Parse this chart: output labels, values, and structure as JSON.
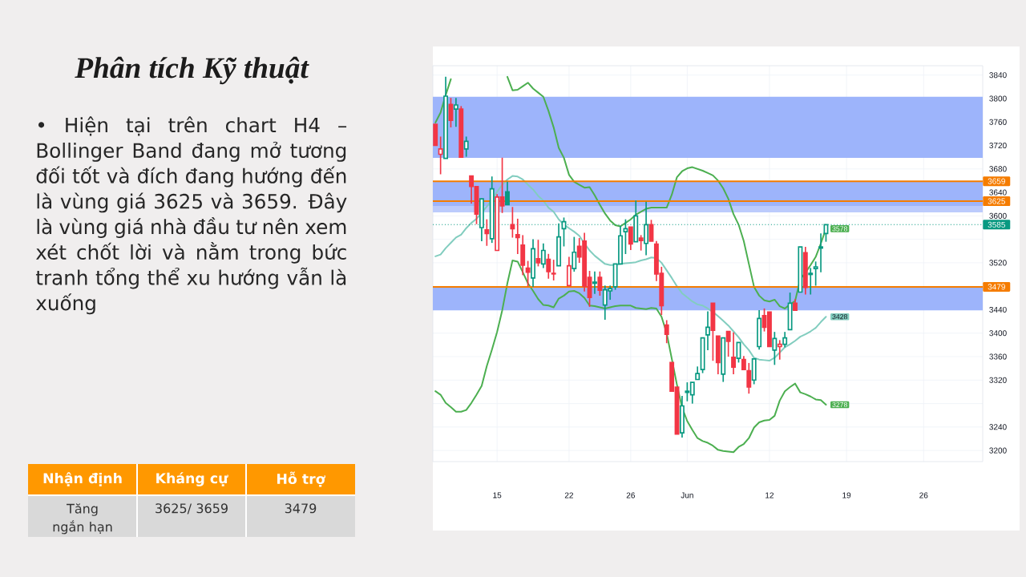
{
  "chart_data": [
    {
      "type": "other",
      "title": "Phân tích Kỹ thuật",
      "annotations": [
        "• Hiện tại trên chart H4 – Bollinger Band đang mở tương đối tốt và đích đang hướng đến là vùng giá 3625 và 3659. Đây là vùng giá nhà đầu tư nên xem xét chốt lời và nằm trong bức tranh tổng thể xu hướng vẫn là xuống",
        "Nhận định",
        "Kháng cự",
        "Hỗ trợ",
        "Tăng ngắn hạn",
        "3625/ 3659",
        "3479"
      ]
    },
    {
      "type": "candlestick",
      "categories": [
        null,
        null,
        null,
        null,
        null,
        null,
        null,
        null,
        null,
        null,
        null,
        null,
        "15",
        null,
        null,
        null,
        null,
        null,
        null,
        null,
        null,
        null,
        null,
        null,
        null,
        null,
        "22",
        null,
        null,
        null,
        null,
        null,
        null,
        null,
        null,
        null,
        null,
        null,
        "26",
        null,
        null,
        null,
        null,
        null,
        null,
        null,
        null,
        null,
        null,
        "Jun",
        null,
        null,
        null,
        null,
        null,
        null,
        null,
        null,
        null,
        null,
        null,
        null,
        null,
        null,
        null,
        "12",
        null,
        null,
        null,
        null,
        null,
        null,
        null,
        null,
        null,
        null,
        null,
        null,
        null,
        null,
        "19",
        null,
        null,
        null,
        null,
        null,
        null,
        null,
        null,
        null,
        null,
        null,
        null,
        null,
        null,
        "26",
        null,
        null,
        null,
        null,
        null,
        null,
        null,
        null,
        null,
        null,
        null
      ],
      "ohlc": [
        [
          3756,
          3756,
          3720,
          3720
        ],
        [
          3705,
          3734,
          3672,
          3714
        ],
        [
          3698,
          3836,
          3698,
          3804
        ],
        [
          3790,
          3800,
          3752,
          3763
        ],
        [
          3782,
          3800,
          3753,
          3789
        ],
        [
          3782,
          3786,
          3700,
          3700
        ],
        [
          3714,
          3734,
          3702,
          3727
        ],
        [
          3668,
          3668,
          3622,
          3650
        ],
        [
          3650,
          3650,
          3587,
          3603
        ],
        [
          3580,
          3629,
          3558,
          3629
        ],
        [
          3576,
          3593,
          3550,
          3570
        ],
        [
          3561,
          3666,
          3555,
          3646
        ],
        [
          3541,
          3636,
          3541,
          3632
        ],
        [
          3632,
          3698,
          3606,
          3617
        ],
        [
          3641,
          3657,
          3619,
          3619
        ],
        [
          3585,
          3614,
          3564,
          3578
        ],
        [
          3568,
          3594,
          3536,
          3563
        ],
        [
          3550,
          3566,
          3500,
          3516
        ],
        [
          3511,
          3522,
          3481,
          3504
        ],
        [
          3494,
          3559,
          3480,
          3544
        ],
        [
          3527,
          3558,
          3515,
          3520
        ],
        [
          3518,
          3552,
          3512,
          3541
        ],
        [
          3526,
          3534,
          3494,
          3505
        ],
        [
          3502,
          3524,
          3491,
          3501
        ],
        [
          3515,
          3586,
          3515,
          3564
        ],
        [
          3578,
          3596,
          3549,
          3590
        ],
        [
          3481,
          3529,
          3481,
          3515
        ],
        [
          3510,
          3563,
          3506,
          3538
        ],
        [
          3548,
          3561,
          3521,
          3530
        ],
        [
          3557,
          3570,
          3472,
          3480
        ],
        [
          3495,
          3505,
          3446,
          3461
        ],
        [
          3487,
          3504,
          3468,
          3485
        ],
        [
          3495,
          3504,
          3465,
          3473
        ],
        [
          3448,
          3480,
          3424,
          3474
        ],
        [
          3472,
          3480,
          3458,
          3476
        ],
        [
          3479,
          3518,
          3475,
          3518
        ],
        [
          3518,
          3582,
          3518,
          3566
        ],
        [
          3573,
          3593,
          3536,
          3578
        ],
        [
          3581,
          3581,
          3543,
          3552
        ],
        [
          3556,
          3625,
          3556,
          3600
        ],
        [
          3562,
          3566,
          3542,
          3558
        ],
        [
          3553,
          3623,
          3534,
          3585
        ],
        [
          3585,
          3592,
          3557,
          3557
        ],
        [
          3552,
          3556,
          3490,
          3501
        ],
        [
          3502,
          3512,
          3432,
          3447
        ],
        [
          3414,
          3421,
          3384,
          3398
        ],
        [
          3350,
          3350,
          3301,
          3301
        ],
        [
          3308,
          3308,
          3228,
          3228
        ],
        [
          3230,
          3292,
          3223,
          3276
        ],
        [
          3299,
          3315,
          3285,
          3301
        ],
        [
          3295,
          3316,
          3281,
          3316
        ],
        [
          3321,
          3342,
          3321,
          3331
        ],
        [
          3338,
          3392,
          3333,
          3392
        ],
        [
          3397,
          3436,
          3372,
          3410
        ],
        [
          3451,
          3451,
          3354,
          3405
        ],
        [
          3395,
          3395,
          3331,
          3350
        ],
        [
          3330,
          3392,
          3318,
          3392
        ],
        [
          3403,
          3403,
          3361,
          3386
        ],
        [
          3359,
          3400,
          3331,
          3342
        ],
        [
          3357,
          3384,
          3351,
          3384
        ],
        [
          3355,
          3360,
          3338,
          3338
        ],
        [
          3336,
          3348,
          3298,
          3308
        ],
        [
          3320,
          3356,
          3314,
          3356
        ],
        [
          3377,
          3438,
          3373,
          3425
        ],
        [
          3430,
          3441,
          3404,
          3410
        ],
        [
          3436,
          3436,
          3377,
          3377
        ],
        [
          3371,
          3401,
          3347,
          3391
        ],
        [
          3377,
          3387,
          3356,
          3381
        ],
        [
          3381,
          3401,
          3377,
          3392
        ],
        [
          3406,
          3468,
          3406,
          3451
        ],
        [
          3451,
          3457,
          3439,
          3439
        ],
        [
          3470,
          3547,
          3470,
          3547
        ],
        [
          3537,
          3546,
          3467,
          3478
        ],
        [
          3500,
          3510,
          3467,
          3502
        ],
        [
          3510,
          3521,
          3482,
          3513
        ],
        [
          3547,
          3569,
          3505,
          3545
        ],
        [
          3570,
          3585,
          3557,
          3585
        ],
        null,
        null,
        null,
        null,
        null,
        null,
        null,
        null,
        null,
        null,
        null,
        null,
        null,
        null,
        null,
        null,
        null,
        null,
        null,
        null,
        null,
        null,
        null,
        null,
        null,
        null,
        null,
        null,
        null,
        null
      ],
      "colors": [
        "#f23645",
        "#f23645",
        "#089981",
        "#f23645",
        "#089981",
        "#f23645",
        "#089981",
        "#f23645",
        "#f23645",
        "#089981",
        "#f23645",
        "#089981",
        "#f23645",
        "#f23645",
        "#089981",
        "#f23645",
        "#f23645",
        "#f23645",
        "#f23645",
        "#089981",
        "#f23645",
        "#089981",
        "#f23645",
        "#f23645",
        "#089981",
        "#089981",
        "#f23645",
        "#089981",
        "#f23645",
        "#f23645",
        "#f23645",
        "#089981",
        "#f23645",
        "#089981",
        "#089981",
        "#089981",
        "#089981",
        "#089981",
        "#f23645",
        "#089981",
        "#f23645",
        "#089981",
        "#f23645",
        "#f23645",
        "#f23645",
        "#f23645",
        "#f23645",
        "#f23645",
        "#089981",
        "#089981",
        "#089981",
        "#089981",
        "#089981",
        "#089981",
        "#f23645",
        "#f23645",
        "#089981",
        "#f23645",
        "#f23645",
        "#089981",
        "#f23645",
        "#f23645",
        "#089981",
        "#089981",
        "#f23645",
        "#f23645",
        "#089981",
        "#f23645",
        "#089981",
        "#089981",
        "#f23645",
        "#089981",
        "#f23645",
        "#089981",
        "#089981",
        "#089981",
        "#089981",
        null,
        null,
        null,
        null,
        null,
        null,
        null,
        null,
        null,
        null,
        null,
        null,
        null,
        null,
        null,
        null,
        null,
        null,
        null,
        null,
        null,
        null,
        null,
        null,
        null,
        null,
        null,
        null,
        null,
        null
      ],
      "series": [
        {
          "type": "line",
          "color": "#4caf50",
          "values": [
            3759,
            3776,
            3806,
            3833,
            null,
            null,
            null,
            null,
            null,
            null,
            null,
            null,
            null,
            null,
            3837,
            3814,
            3815,
            3821,
            3827,
            3817,
            3810,
            3803,
            3779,
            3751,
            3716,
            3699,
            3670,
            3658,
            3653,
            3648,
            3649,
            3635,
            3619,
            3604,
            3592,
            3584,
            3582,
            3588,
            3594,
            3602,
            3607,
            3612,
            3614,
            3614,
            3614,
            3614,
            3636,
            3666,
            3676,
            3681,
            3683,
            3680,
            3677,
            3673,
            3669,
            3660,
            3647,
            3629,
            3603,
            3585,
            3557,
            3518,
            3479,
            3464,
            3456,
            3454,
            3457,
            3446,
            3442,
            3449,
            3455,
            3492,
            3503,
            3516,
            3530,
            3553,
            3578,
            null,
            null,
            null,
            null,
            null,
            null,
            null,
            null,
            null,
            null,
            null,
            null,
            null,
            null,
            null,
            null,
            null,
            null,
            null,
            null,
            null,
            null,
            null,
            null,
            null,
            null,
            null,
            null,
            null,
            null
          ],
          "value_labels": [
            null,
            null,
            null,
            null,
            null,
            null,
            null,
            null,
            null,
            null,
            null,
            null,
            null,
            null,
            null,
            null,
            null,
            null,
            null,
            null,
            null,
            null,
            null,
            null,
            null,
            null,
            null,
            null,
            null,
            null,
            null,
            null,
            null,
            null,
            null,
            null,
            null,
            null,
            null,
            null,
            null,
            null,
            null,
            null,
            null,
            null,
            null,
            null,
            null,
            null,
            null,
            null,
            null,
            null,
            null,
            null,
            null,
            null,
            null,
            null,
            null,
            null,
            null,
            null,
            null,
            null,
            null,
            null,
            null,
            null,
            null,
            null,
            null,
            null,
            null,
            null,
            "3578",
            null,
            null,
            null,
            null,
            null,
            null,
            null,
            null,
            null,
            null,
            null,
            null,
            null,
            null,
            null,
            null,
            null,
            null,
            null,
            null,
            null,
            null,
            null,
            null,
            null,
            null,
            null,
            null,
            null,
            null
          ]
        },
        {
          "type": "line",
          "color": "#82cdbf",
          "values": [
            3531,
            3534,
            3545,
            3554,
            3563,
            3568,
            3579,
            3588,
            3595,
            3605,
            3616,
            3627,
            3641,
            3653,
            3662,
            3668,
            3667,
            3662,
            3653,
            3645,
            3634,
            3626,
            3614,
            3607,
            3594,
            3585,
            3579,
            3573,
            3566,
            3553,
            3541,
            3532,
            3525,
            3518,
            3516,
            3516,
            3518,
            3519,
            3520,
            3521,
            3524,
            3526,
            3529,
            3528,
            3520,
            3507,
            3494,
            3480,
            3468,
            3461,
            3454,
            3449,
            3447,
            3442,
            3436,
            3429,
            3421,
            3413,
            3403,
            3393,
            3381,
            3371,
            3358,
            3355,
            3354,
            3353,
            3358,
            3367,
            3376,
            3381,
            3387,
            3394,
            3398,
            3403,
            3409,
            3419,
            3428,
            null,
            null,
            null,
            null,
            null,
            null,
            null,
            null,
            null,
            null,
            null,
            null,
            null,
            null,
            null,
            null,
            null,
            null,
            null,
            null,
            null,
            null,
            null,
            null,
            null,
            null,
            null,
            null,
            null,
            null
          ],
          "value_labels": [
            null,
            null,
            null,
            null,
            null,
            null,
            null,
            null,
            null,
            null,
            null,
            null,
            null,
            null,
            null,
            null,
            null,
            null,
            null,
            null,
            null,
            null,
            null,
            null,
            null,
            null,
            null,
            null,
            null,
            null,
            null,
            null,
            null,
            null,
            null,
            null,
            null,
            null,
            null,
            null,
            null,
            null,
            null,
            null,
            null,
            null,
            null,
            null,
            null,
            null,
            null,
            null,
            null,
            null,
            null,
            null,
            null,
            null,
            null,
            null,
            null,
            null,
            null,
            null,
            null,
            null,
            null,
            null,
            null,
            null,
            null,
            null,
            null,
            null,
            null,
            null,
            "3428",
            null,
            null,
            null,
            null,
            null,
            null,
            null,
            null,
            null,
            null,
            null,
            null,
            null,
            null,
            null,
            null,
            null,
            null,
            null,
            null,
            null,
            null,
            null,
            null,
            null,
            null,
            null,
            null,
            null,
            null
          ]
        },
        {
          "type": "line",
          "color": "#4caf50",
          "values": [
            3301,
            3295,
            3281,
            3274,
            3266,
            3266,
            3269,
            3281,
            3295,
            3310,
            3344,
            3372,
            3402,
            3439,
            3485,
            3524,
            3522,
            3504,
            3485,
            3472,
            3458,
            3448,
            3447,
            3444,
            3459,
            3464,
            3471,
            3472,
            3468,
            3460,
            3447,
            3446,
            3444,
            3442,
            3444,
            3446,
            3447,
            3447,
            3447,
            3443,
            3442,
            3441,
            3443,
            3442,
            3428,
            3400,
            3356,
            3312,
            3273,
            3250,
            3235,
            3221,
            3216,
            3213,
            3208,
            3201,
            3199,
            3198,
            3197,
            3206,
            3211,
            3221,
            3239,
            3248,
            3251,
            3252,
            3259,
            3285,
            3301,
            3308,
            3314,
            3299,
            3296,
            3292,
            3287,
            3286,
            3278,
            null,
            null,
            null,
            null,
            null,
            null,
            null,
            null,
            null,
            null,
            null,
            null,
            null,
            null,
            null,
            null,
            null,
            null,
            null,
            null,
            null,
            null,
            null,
            null,
            null,
            null,
            null,
            null,
            null,
            null
          ],
          "value_labels": [
            null,
            null,
            null,
            null,
            null,
            null,
            null,
            null,
            null,
            null,
            null,
            null,
            null,
            null,
            null,
            null,
            null,
            null,
            null,
            null,
            null,
            null,
            null,
            null,
            null,
            null,
            null,
            null,
            null,
            null,
            null,
            null,
            null,
            null,
            null,
            null,
            null,
            null,
            null,
            null,
            null,
            null,
            null,
            null,
            null,
            null,
            null,
            null,
            null,
            null,
            null,
            null,
            null,
            null,
            null,
            null,
            null,
            null,
            null,
            null,
            null,
            null,
            null,
            null,
            null,
            null,
            null,
            null,
            null,
            null,
            null,
            null,
            null,
            null,
            null,
            null,
            "3278",
            null,
            null,
            null,
            null,
            null,
            null,
            null,
            null,
            null,
            null,
            null,
            null,
            null,
            null,
            null,
            null,
            null,
            null,
            null,
            null,
            null,
            null,
            null,
            null,
            null,
            null,
            null,
            null,
            null,
            null
          ]
        }
      ],
      "ylim": [
        3181,
        3856
      ],
      "yticks": [
        3200,
        3240,
        {
          "value": 3280,
          "label": null
        },
        3320,
        3360,
        3400,
        3440,
        {
          "value": 3480,
          "label": null
        },
        3520,
        {
          "value": 3560,
          "label": null
        },
        3600,
        3640,
        3680,
        3720,
        3760,
        3800,
        3840
      ],
      "grid": true,
      "bands": [
        {
          "axis": "y",
          "from": 3699,
          "to": 3803,
          "color": "#9db4fb"
        },
        {
          "axis": "y",
          "from": 3606,
          "to": 3625,
          "color": "#bccbfc"
        },
        {
          "axis": "y",
          "from": 3617,
          "to": 3658,
          "color": "#9db4fb"
        },
        {
          "axis": "y",
          "from": 3439,
          "to": 3479,
          "color": "#9db4fb"
        }
      ],
      "ref_lines": [
        {
          "axis": "y",
          "value": 3659,
          "label": "3659",
          "color": "#f57c00"
        },
        {
          "axis": "y",
          "value": 3625,
          "label": "3625",
          "color": "#f57c00"
        },
        {
          "axis": "y",
          "value": 3479,
          "label": "3479",
          "color": "#f57c00"
        },
        {
          "axis": "y",
          "value": 3585,
          "label": "3585",
          "color": "#089981",
          "line_style": "dotted"
        }
      ]
    }
  ]
}
